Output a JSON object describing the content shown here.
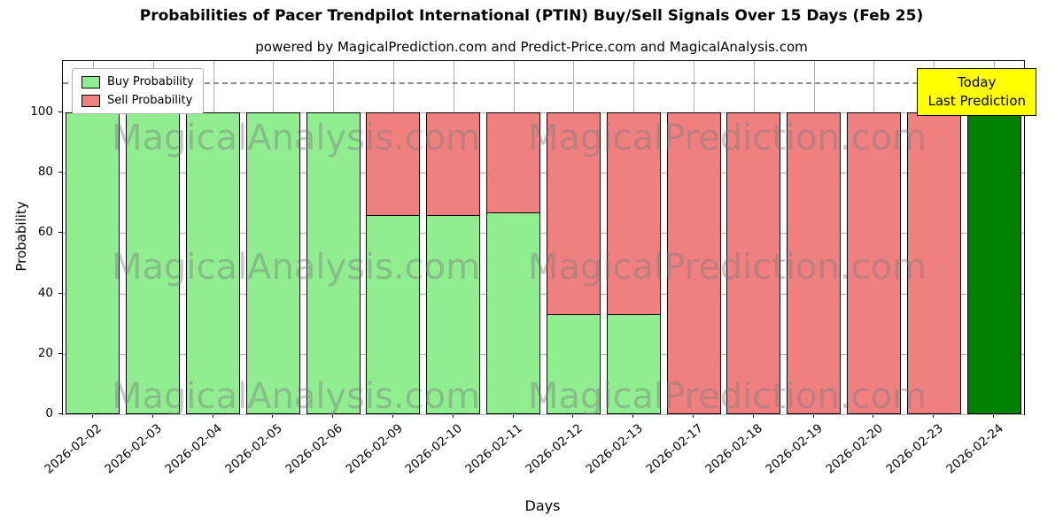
{
  "title": "Probabilities of Pacer Trendpilot International  (PTIN) Buy/Sell Signals Over 15 Days (Feb 25)",
  "subtitle": "powered by MagicalPrediction.com and Predict-Price.com and MagicalAnalysis.com",
  "annotation": {
    "line1": "Today",
    "line2": "Last Prediction"
  },
  "legend": [
    {
      "label": "Buy Probability",
      "color": "#90EE90"
    },
    {
      "label": "Sell Probability",
      "color": "#F08080"
    }
  ],
  "watermarks": [
    "MagicalAnalysis.com",
    "MagicalPrediction.com"
  ],
  "chart_data": {
    "type": "bar",
    "stacked": true,
    "title": "Probabilities of Pacer Trendpilot International  (PTIN) Buy/Sell Signals Over 15 Days (Feb 25)",
    "xlabel": "Days",
    "ylabel": "Probability",
    "categories": [
      "2026-02-02",
      "2026-02-03",
      "2026-02-04",
      "2026-02-05",
      "2026-02-06",
      "2026-02-09",
      "2026-02-10",
      "2026-02-11",
      "2026-02-12",
      "2026-02-13",
      "2026-02-17",
      "2026-02-18",
      "2026-02-19",
      "2026-02-20",
      "2026-02-23",
      "2026-02-24"
    ],
    "series": [
      {
        "name": "Buy Probability",
        "color": "#90EE90",
        "values": [
          100,
          100,
          100,
          100,
          100,
          66,
          66,
          67,
          33,
          33,
          0,
          0,
          0,
          0,
          0,
          100
        ]
      },
      {
        "name": "Sell Probability",
        "color": "#F08080",
        "values": [
          0,
          0,
          0,
          0,
          0,
          34,
          34,
          33,
          67,
          67,
          100,
          100,
          100,
          100,
          100,
          0
        ]
      }
    ],
    "last_bar_color": "#008000",
    "yticks": [
      0,
      20,
      40,
      60,
      80,
      100
    ],
    "ylim": [
      0,
      117
    ],
    "dashed_line_y": 110,
    "grid": true,
    "legend_position": "upper-left"
  }
}
